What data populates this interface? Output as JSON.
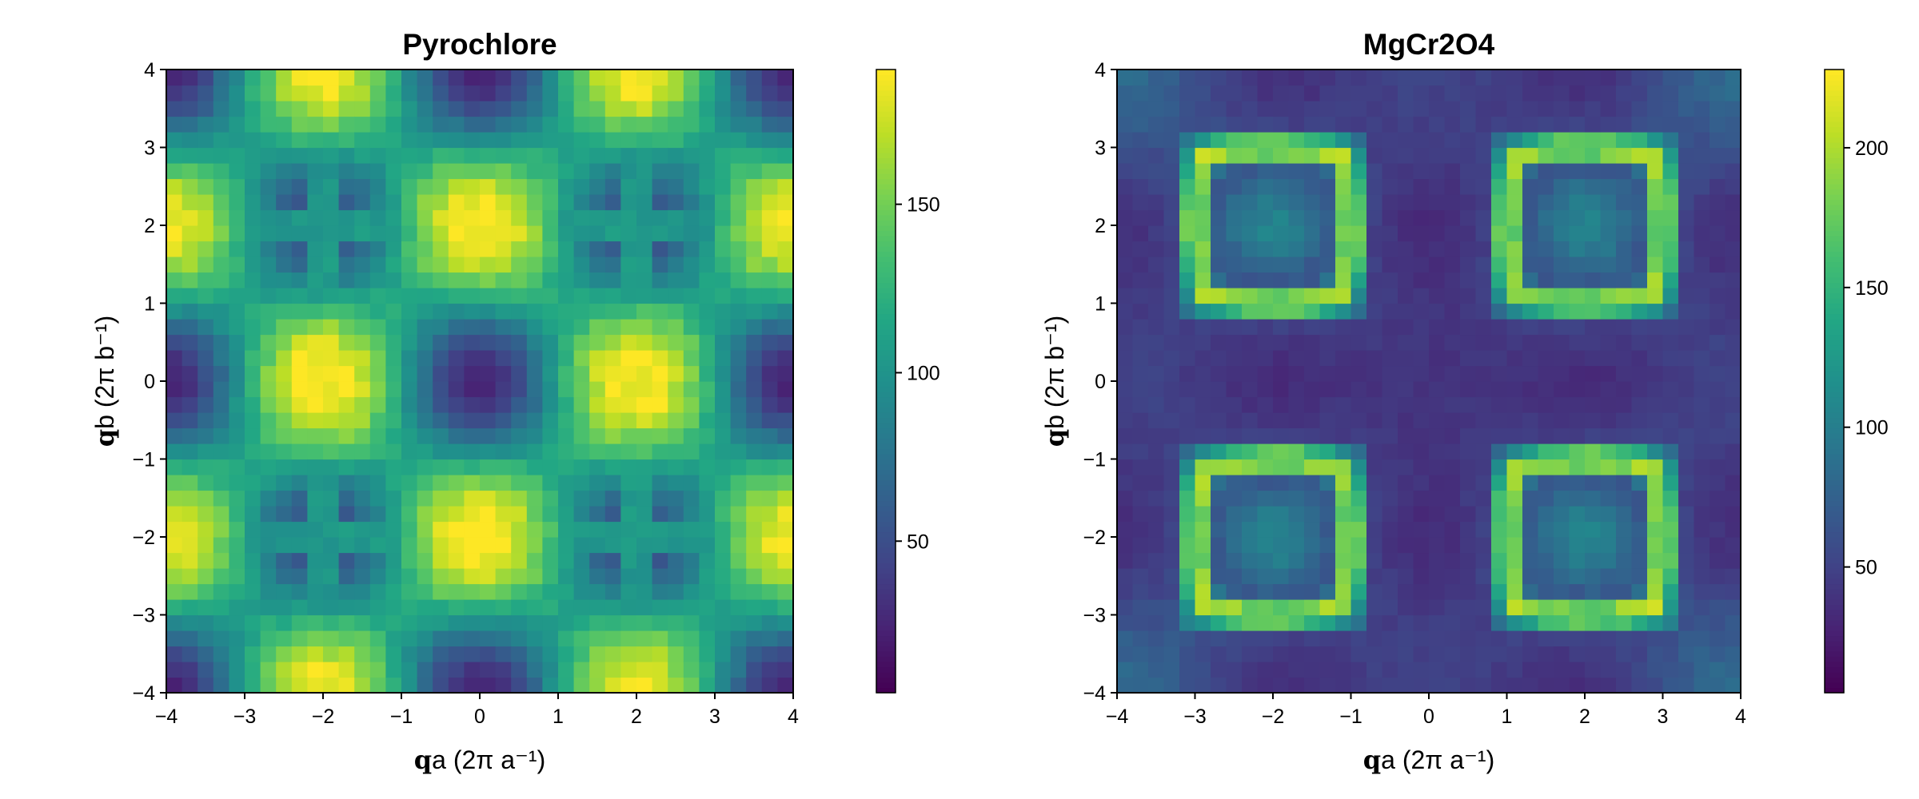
{
  "chart_data": [
    {
      "type": "heatmap",
      "title": "Pyrochlore",
      "xlabel_bold": "q",
      "xlabel_rest": "a (2π a⁻¹)",
      "ylabel_bold": "q",
      "ylabel_rest": "b (2π b⁻¹)",
      "xlim": [
        -4,
        4
      ],
      "ylim": [
        -4,
        4
      ],
      "xticks": [
        -4,
        -3,
        -2,
        -1,
        0,
        1,
        2,
        3,
        4
      ],
      "yticks": [
        -4,
        -3,
        -2,
        -1,
        0,
        1,
        2,
        3,
        4
      ],
      "grid_cells": 40,
      "colormap": "viridis",
      "colorbar": {
        "min": 5,
        "max": 190,
        "ticks": [
          50,
          100,
          150
        ]
      },
      "pattern": "pyrochlore-bowtie",
      "grid": false
    },
    {
      "type": "heatmap",
      "title": "MgCr2O4",
      "xlabel_bold": "q",
      "xlabel_rest": "a (2π a⁻¹)",
      "ylabel_bold": "q",
      "ylabel_rest": "b (2π b⁻¹)",
      "xlim": [
        -4,
        4
      ],
      "ylim": [
        -4,
        4
      ],
      "xticks": [
        -4,
        -3,
        -2,
        -1,
        0,
        1,
        2,
        3,
        4
      ],
      "yticks": [
        -4,
        -3,
        -2,
        -1,
        0,
        1,
        2,
        3,
        4
      ],
      "grid_cells": 40,
      "colormap": "viridis",
      "colorbar": {
        "min": 5,
        "max": 228,
        "ticks": [
          50,
          100,
          150,
          200
        ]
      },
      "pattern": "mgcr2o4-rings",
      "grid": false
    }
  ]
}
